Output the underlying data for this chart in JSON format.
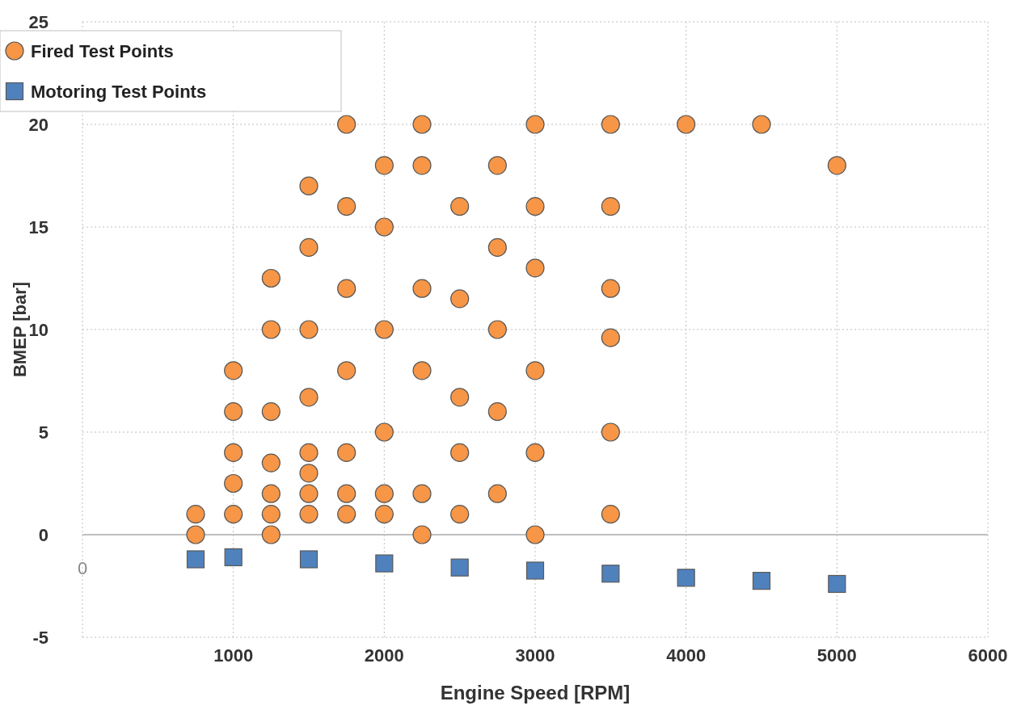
{
  "chart_data": {
    "type": "scatter",
    "xlabel": "Engine Speed [RPM]",
    "ylabel": "BMEP [bar]",
    "xlim": [
      0,
      6000
    ],
    "ylim": [
      -5,
      25
    ],
    "xticks": [
      {
        "value": 0,
        "label": null
      },
      1000,
      2000,
      3000,
      4000,
      5000,
      6000
    ],
    "yticks": [
      -5,
      0,
      5,
      10,
      15,
      20,
      25
    ],
    "grid": true,
    "legend": "top left",
    "ref_lines": [
      {
        "axis": "y",
        "value": 0,
        "color": "#bfbfbf",
        "line_style": "solid"
      }
    ],
    "annotations": [
      "0"
    ],
    "series": [
      {
        "name": "Fired Test Points",
        "color": "#f79646",
        "marker": "circle",
        "x": [
          750,
          750,
          1000,
          1000,
          1000,
          1000,
          1000,
          1250,
          1250,
          1250,
          1250,
          1250,
          1250,
          1250,
          1500,
          1500,
          1500,
          1500,
          1500,
          1500,
          1500,
          1500,
          1750,
          1750,
          1750,
          1750,
          1750,
          1750,
          1750,
          2000,
          2000,
          2000,
          2000,
          2000,
          2000,
          2250,
          2250,
          2250,
          2250,
          2250,
          2250,
          2500,
          2500,
          2500,
          2500,
          2500,
          2750,
          2750,
          2750,
          2750,
          2750,
          3000,
          3000,
          3000,
          3000,
          3000,
          3000,
          3500,
          3500,
          3500,
          3500,
          3500,
          3500,
          4000,
          4500,
          5000
        ],
        "values": [
          1,
          0,
          8,
          6,
          4,
          2.5,
          1,
          12.5,
          10,
          6,
          3.5,
          2,
          1,
          0,
          17,
          14,
          10,
          6.7,
          4,
          3,
          2,
          1,
          20,
          16,
          12,
          8,
          4,
          2,
          1,
          18,
          15,
          10,
          5,
          2,
          1,
          20,
          18,
          12,
          8,
          2,
          0,
          16,
          11.5,
          6.7,
          4,
          1,
          18,
          14,
          10,
          6,
          2,
          20,
          16,
          13,
          8,
          4,
          0,
          20,
          16,
          12,
          9.6,
          5,
          1,
          20,
          20,
          18
        ]
      },
      {
        "name": "Motoring Test Points",
        "color": "#4f81bd",
        "marker": "square",
        "x": [
          750,
          1000,
          1500,
          2000,
          2500,
          3000,
          3500,
          4000,
          4500,
          5000
        ],
        "values": [
          -1.2,
          -1.1,
          -1.2,
          -1.4,
          -1.6,
          -1.75,
          -1.9,
          -2.1,
          -2.25,
          -2.4
        ]
      }
    ]
  }
}
